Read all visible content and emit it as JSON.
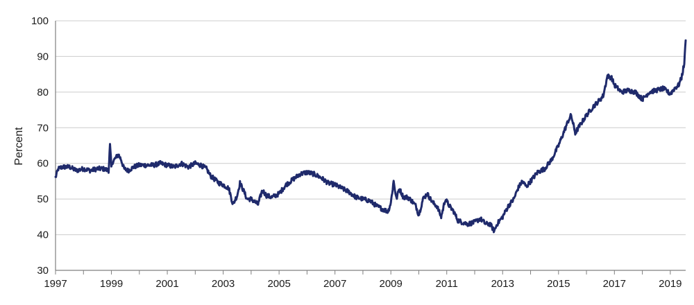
{
  "chart_data": {
    "type": "line",
    "title": "",
    "xlabel": "",
    "ylabel": "Percent",
    "xlim": [
      1997,
      2019.55
    ],
    "ylim": [
      30,
      100
    ],
    "x_ticks": [
      1997,
      1999,
      2001,
      2003,
      2005,
      2007,
      2009,
      2011,
      2013,
      2015,
      2017,
      2019
    ],
    "x_tick_labels": [
      "1997",
      "1999",
      "2001",
      "2003",
      "2005",
      "2007",
      "2009",
      "2011",
      "2013",
      "2015",
      "2017",
      "2019"
    ],
    "y_ticks": [
      30,
      40,
      50,
      60,
      70,
      80,
      90,
      100
    ],
    "y_tick_labels": [
      "30",
      "40",
      "50",
      "60",
      "70",
      "80",
      "90",
      "100"
    ],
    "grid": "horizontal",
    "legend": "none",
    "line_color": "#1f2a6b",
    "series": [
      {
        "x": [
          1997.0,
          1997.1,
          1997.25,
          1997.5,
          1997.75,
          1998.0,
          1998.25,
          1998.5,
          1998.7,
          1998.9,
          1998.95,
          1999.0,
          1999.05,
          1999.15,
          1999.25,
          1999.35,
          1999.45,
          1999.6,
          1999.8,
          2000.0,
          2000.25,
          2000.5,
          2000.75,
          2001.0,
          2001.25,
          2001.5,
          2001.75,
          2002.0,
          2002.2,
          2002.4,
          2002.55,
          2002.7,
          2002.85,
          2003.0,
          2003.2,
          2003.35,
          2003.5,
          2003.6,
          2003.75,
          2003.85,
          2004.0,
          2004.25,
          2004.4,
          2004.55,
          2004.75,
          2005.0,
          2005.25,
          2005.5,
          2005.75,
          2006.0,
          2006.25,
          2006.5,
          2006.75,
          2007.0,
          2007.25,
          2007.5,
          2007.75,
          2008.0,
          2008.25,
          2008.5,
          2008.75,
          2008.9,
          2009.0,
          2009.1,
          2009.2,
          2009.3,
          2009.45,
          2009.6,
          2009.75,
          2009.9,
          2010.0,
          2010.15,
          2010.3,
          2010.5,
          2010.65,
          2010.8,
          2010.95,
          2011.1,
          2011.25,
          2011.4,
          2011.55,
          2011.75,
          2012.0,
          2012.2,
          2012.4,
          2012.55,
          2012.7,
          2012.8,
          2013.0,
          2013.2,
          2013.4,
          2013.55,
          2013.7,
          2013.85,
          2014.0,
          2014.25,
          2014.5,
          2014.75,
          2015.0,
          2015.2,
          2015.35,
          2015.45,
          2015.6,
          2015.75,
          2016.0,
          2016.25,
          2016.5,
          2016.6,
          2016.75,
          2016.9,
          2017.0,
          2017.25,
          2017.5,
          2017.75,
          2018.0,
          2018.25,
          2018.5,
          2018.75,
          2019.0,
          2019.15,
          2019.3,
          2019.4,
          2019.5,
          2019.55
        ],
        "y": [
          56.0,
          58.5,
          59.0,
          59.0,
          58.0,
          58.5,
          58.0,
          58.5,
          58.5,
          58.0,
          65.0,
          59.0,
          60.5,
          61.5,
          62.5,
          61.0,
          58.5,
          58.0,
          59.0,
          59.5,
          59.5,
          59.5,
          60.0,
          59.5,
          59.0,
          60.0,
          59.0,
          60.0,
          59.5,
          58.5,
          56.5,
          55.5,
          54.5,
          54.0,
          53.0,
          48.5,
          51.0,
          54.5,
          52.0,
          50.0,
          50.0,
          48.5,
          52.5,
          51.0,
          50.5,
          51.5,
          54.0,
          55.5,
          57.0,
          57.5,
          57.0,
          56.0,
          54.5,
          54.0,
          53.0,
          52.0,
          50.5,
          50.0,
          49.5,
          48.0,
          47.0,
          46.5,
          49.0,
          55.0,
          50.0,
          53.0,
          50.5,
          50.5,
          49.5,
          48.0,
          45.5,
          50.0,
          51.5,
          49.0,
          48.0,
          45.0,
          50.0,
          48.0,
          46.5,
          44.0,
          43.5,
          43.0,
          43.5,
          44.5,
          43.0,
          43.0,
          41.0,
          43.0,
          45.0,
          48.0,
          50.0,
          53.0,
          55.0,
          53.5,
          55.0,
          57.5,
          58.5,
          61.0,
          65.0,
          69.0,
          72.0,
          73.5,
          68.5,
          70.5,
          73.5,
          76.0,
          78.0,
          79.0,
          84.5,
          84.0,
          82.0,
          80.0,
          80.5,
          80.0,
          78.0,
          80.0,
          80.5,
          81.0,
          79.5,
          81.0,
          82.0,
          84.0,
          88.0,
          94.5
        ]
      }
    ]
  }
}
